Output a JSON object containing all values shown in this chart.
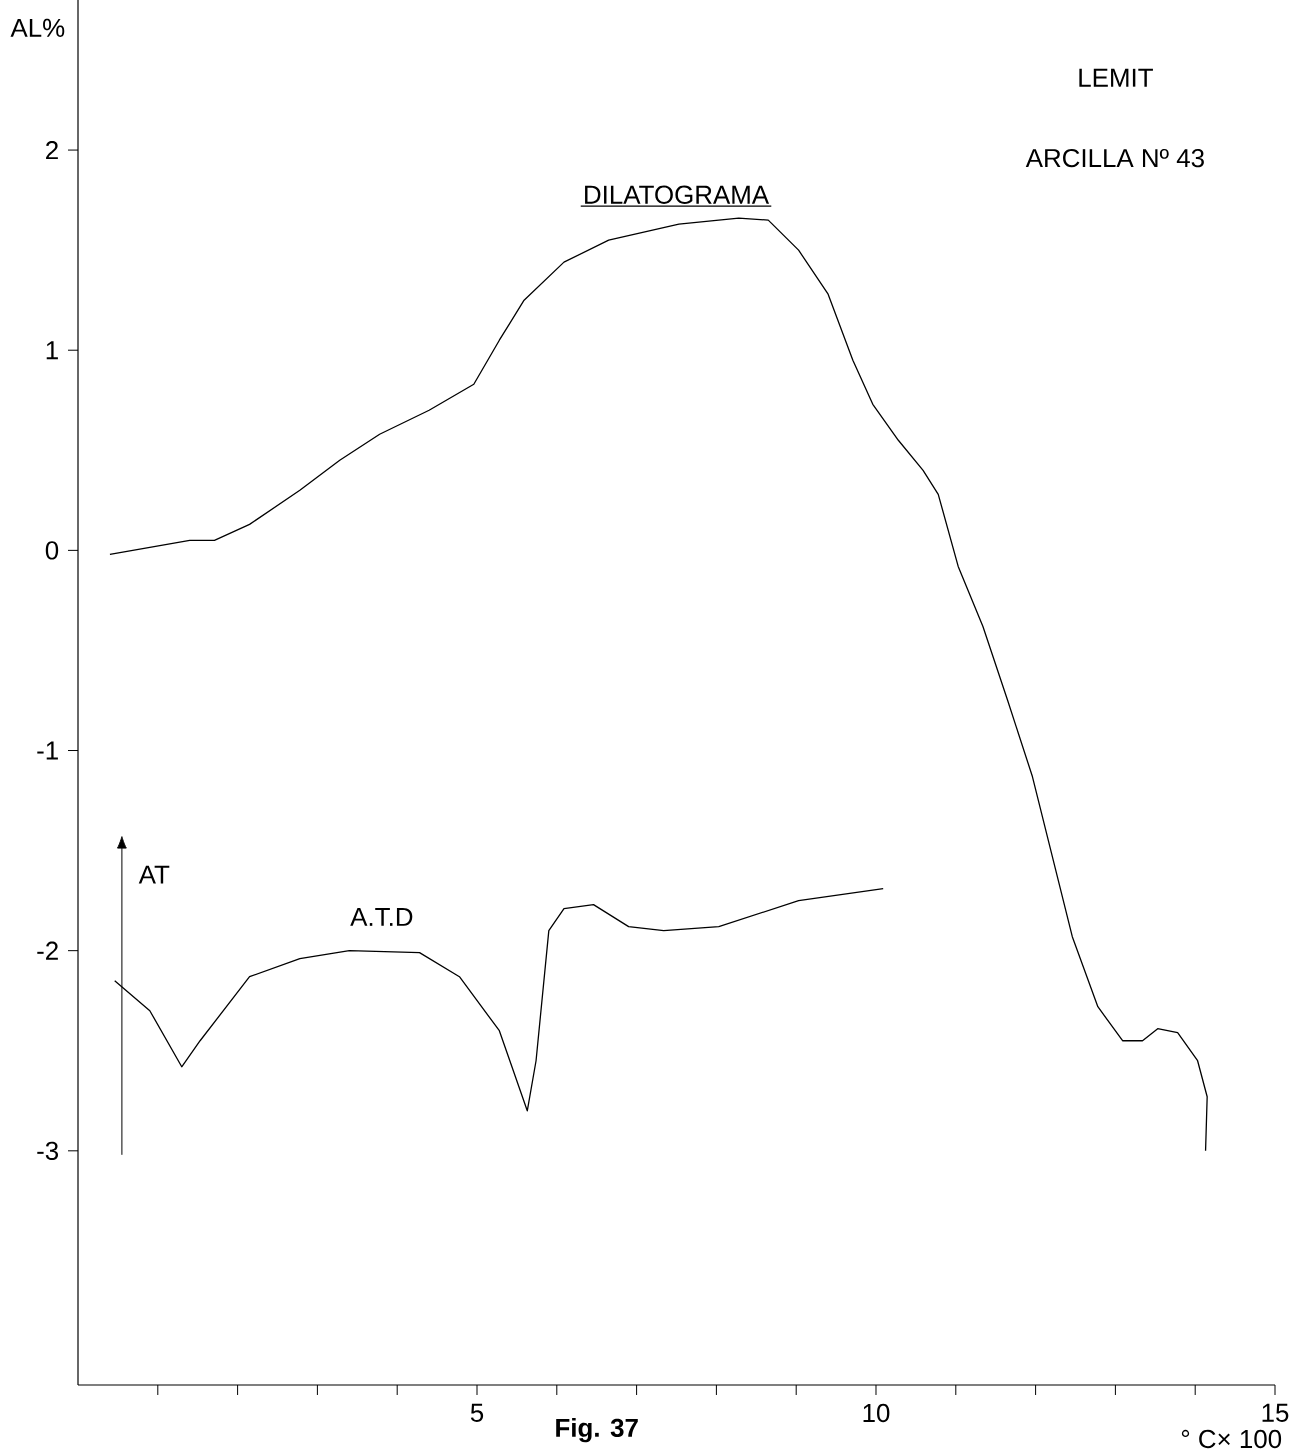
{
  "chart_data": {
    "type": "line",
    "xlabel": "° C× 100",
    "ylabel": "AL%",
    "annotations": [
      "LEMIT",
      "ARCILLA Nº 43",
      "AT",
      "Fig. 37"
    ],
    "series": [
      {
        "name": "DILATOGRAMA",
        "color": "#000000",
        "x": [
          0.4,
          1.4,
          1.71,
          2.15,
          2.78,
          3.28,
          3.78,
          4.4,
          4.96,
          5.28,
          5.59,
          6.09,
          6.65,
          7.53,
          8.28,
          8.65,
          9.03,
          9.4,
          9.71,
          9.96,
          10.28,
          10.59,
          10.78,
          11.03,
          11.34,
          11.65,
          11.96,
          12.21,
          12.46,
          12.78,
          13.09,
          13.34,
          13.53,
          13.78,
          14.03,
          14.15,
          14.13
        ],
        "values": [
          -0.02,
          0.05,
          0.05,
          0.13,
          0.3,
          0.45,
          0.58,
          0.7,
          0.83,
          1.05,
          1.25,
          1.44,
          1.55,
          1.63,
          1.66,
          1.65,
          1.5,
          1.28,
          0.95,
          0.73,
          0.55,
          0.4,
          0.28,
          -0.08,
          -0.38,
          -0.75,
          -1.13,
          -1.53,
          -1.93,
          -2.28,
          -2.45,
          -2.45,
          -2.39,
          -2.41,
          -2.55,
          -2.73,
          -3.0
        ]
      },
      {
        "name": "A.T.D",
        "color": "#000000",
        "x": [
          0.46,
          0.9,
          1.3,
          1.53,
          2.15,
          2.78,
          3.4,
          4.28,
          4.78,
          5.28,
          5.63,
          5.74,
          5.9,
          6.09,
          6.46,
          6.9,
          7.34,
          8.03,
          9.03,
          10.09
        ],
        "values": [
          -2.15,
          -2.3,
          -2.58,
          -2.45,
          -2.13,
          -2.04,
          -2.0,
          -2.01,
          -2.13,
          -2.4,
          -2.8,
          -2.55,
          -1.9,
          -1.79,
          -1.77,
          -1.88,
          -1.9,
          -1.88,
          -1.75,
          -1.69
        ]
      }
    ],
    "xlim": [
      0,
      15
    ],
    "ylim": [
      -4.17,
      2.75
    ],
    "xticks": [
      {
        "value": 1,
        "label": null
      },
      {
        "value": 2,
        "label": null
      },
      {
        "value": 3,
        "label": null
      },
      {
        "value": 4,
        "label": null
      },
      5,
      {
        "value": 6,
        "label": null
      },
      {
        "value": 7,
        "label": null
      },
      {
        "value": 8,
        "label": null
      },
      {
        "value": 9,
        "label": null
      },
      10,
      {
        "value": 11,
        "label": null
      },
      {
        "value": 12,
        "label": null
      },
      {
        "value": 13,
        "label": null
      },
      {
        "value": 14,
        "label": null
      },
      15
    ],
    "yticks": [
      -3,
      -2,
      -1,
      0,
      1,
      2
    ],
    "grid": false,
    "legend": false,
    "marker": "none",
    "line_style": "solid"
  }
}
